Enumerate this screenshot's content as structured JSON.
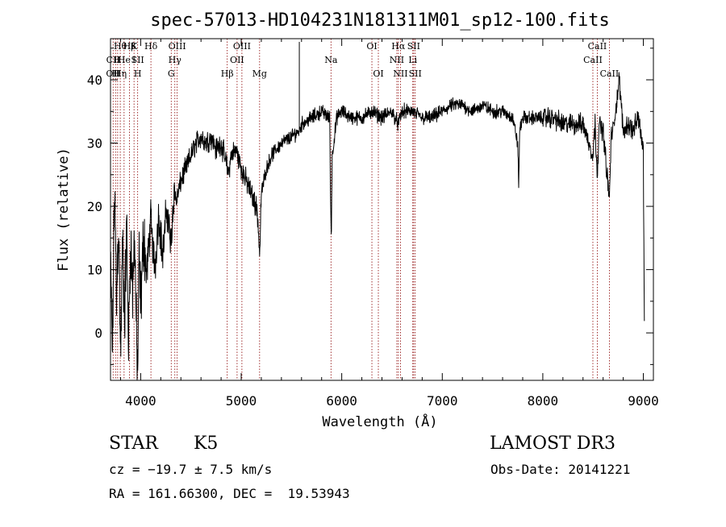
{
  "chart_data": {
    "type": "line",
    "title": "spec-57013-HD104231N181311M01_sp12-100.fits",
    "xlabel": "Wavelength (Å)",
    "ylabel": "Flux (relative)",
    "xlim": [
      3700,
      9100
    ],
    "ylim": [
      -7.5,
      46.5
    ],
    "x_ticks": [
      4000,
      5000,
      6000,
      7000,
      8000,
      9000
    ],
    "y_ticks": [
      0,
      10,
      20,
      30,
      40
    ],
    "grid": false,
    "line_color": "#000000",
    "marker_color": "#8b0000",
    "series": [
      {
        "anchors": [
          [
            3700,
            10
          ],
          [
            3720,
            -3
          ],
          [
            3740,
            24
          ],
          [
            3760,
            5
          ],
          [
            3780,
            18
          ],
          [
            3800,
            -4
          ],
          [
            3820,
            14
          ],
          [
            3840,
            2
          ],
          [
            3860,
            17
          ],
          [
            3880,
            -2
          ],
          [
            3900,
            15
          ],
          [
            3920,
            6
          ],
          [
            3940,
            16
          ],
          [
            3960,
            -2
          ],
          [
            3970,
            -6
          ],
          [
            3985,
            12
          ],
          [
            4000,
            4
          ],
          [
            4030,
            16
          ],
          [
            4060,
            9
          ],
          [
            4100,
            18
          ],
          [
            4140,
            10
          ],
          [
            4180,
            19
          ],
          [
            4220,
            12
          ],
          [
            4260,
            20
          ],
          [
            4300,
            14
          ],
          [
            4330,
            22
          ],
          [
            4360,
            21
          ],
          [
            4400,
            24
          ],
          [
            4450,
            26
          ],
          [
            4500,
            28
          ],
          [
            4550,
            30
          ],
          [
            4600,
            31
          ],
          [
            4650,
            30
          ],
          [
            4700,
            31
          ],
          [
            4750,
            29
          ],
          [
            4800,
            30
          ],
          [
            4850,
            27
          ],
          [
            4870,
            25
          ],
          [
            4900,
            28
          ],
          [
            4950,
            29
          ],
          [
            5000,
            26
          ],
          [
            5050,
            24
          ],
          [
            5100,
            22
          ],
          [
            5150,
            20
          ],
          [
            5170,
            17
          ],
          [
            5183,
            12
          ],
          [
            5200,
            22
          ],
          [
            5250,
            26
          ],
          [
            5300,
            28
          ],
          [
            5400,
            30
          ],
          [
            5500,
            31
          ],
          [
            5580,
            32
          ],
          [
            5600,
            33
          ],
          [
            5700,
            34
          ],
          [
            5800,
            35
          ],
          [
            5880,
            34
          ],
          [
            5890,
            20
          ],
          [
            5896,
            15
          ],
          [
            5905,
            28
          ],
          [
            5950,
            34
          ],
          [
            6000,
            35
          ],
          [
            6100,
            34
          ],
          [
            6200,
            34
          ],
          [
            6300,
            35
          ],
          [
            6400,
            34
          ],
          [
            6500,
            35
          ],
          [
            6563,
            33
          ],
          [
            6600,
            35
          ],
          [
            6700,
            35
          ],
          [
            6800,
            34
          ],
          [
            6900,
            34
          ],
          [
            7000,
            35
          ],
          [
            7100,
            36
          ],
          [
            7200,
            36
          ],
          [
            7300,
            35
          ],
          [
            7400,
            36
          ],
          [
            7500,
            35
          ],
          [
            7600,
            35
          ],
          [
            7700,
            34
          ],
          [
            7750,
            30
          ],
          [
            7760,
            23
          ],
          [
            7770,
            32
          ],
          [
            7800,
            34
          ],
          [
            7900,
            34
          ],
          [
            8000,
            34
          ],
          [
            8100,
            34
          ],
          [
            8200,
            33
          ],
          [
            8300,
            33
          ],
          [
            8400,
            33
          ],
          [
            8498,
            28
          ],
          [
            8520,
            33
          ],
          [
            8542,
            25
          ],
          [
            8560,
            33
          ],
          [
            8600,
            32
          ],
          [
            8662,
            21
          ],
          [
            8680,
            31
          ],
          [
            8700,
            32
          ],
          [
            8760,
            40
          ],
          [
            8800,
            32
          ],
          [
            8850,
            33
          ],
          [
            8900,
            32
          ],
          [
            8950,
            34
          ],
          [
            9000,
            29
          ],
          [
            9010,
            0
          ]
        ]
      }
    ],
    "sticks": [
      {
        "x": 5578,
        "top": 46,
        "bottom": 32
      }
    ],
    "lines": [
      {
        "x": 3726,
        "labels": [
          {
            "row": 1,
            "text": "CII"
          },
          {
            "row": 2,
            "text": "OII"
          }
        ]
      },
      {
        "x": 3750,
        "labels": [
          {
            "row": 2,
            "text": "H"
          }
        ]
      },
      {
        "x": 3771,
        "labels": [
          {
            "row": 1,
            "text": "H"
          },
          {
            "row": 2,
            "text": "H"
          }
        ]
      },
      {
        "x": 3797,
        "labels": [
          {
            "row": 0,
            "text": "Hθ"
          }
        ]
      },
      {
        "x": 3835,
        "labels": [
          {
            "row": 1,
            "text": "He"
          },
          {
            "row": 2,
            "text": "η"
          }
        ]
      },
      {
        "x": 3889,
        "labels": [
          {
            "row": 0,
            "text": "Hβ"
          }
        ]
      },
      {
        "x": 3934,
        "labels": [
          {
            "row": 0,
            "text": "K"
          },
          {
            "row": 1,
            "text": "I"
          }
        ]
      },
      {
        "x": 3970,
        "labels": [
          {
            "row": 1,
            "text": "SII"
          },
          {
            "row": 2,
            "text": "H"
          }
        ]
      },
      {
        "x": 4102,
        "labels": [
          {
            "row": 0,
            "text": "Hδ"
          }
        ]
      },
      {
        "x": 4304,
        "labels": [
          {
            "row": 2,
            "text": "G"
          }
        ]
      },
      {
        "x": 4340,
        "labels": [
          {
            "row": 1,
            "text": "Hγ"
          }
        ]
      },
      {
        "x": 4363,
        "labels": [
          {
            "row": 0,
            "text": "OIII"
          }
        ]
      },
      {
        "x": 4861,
        "labels": [
          {
            "row": 2,
            "text": "Hβ"
          }
        ]
      },
      {
        "x": 4959,
        "labels": [
          {
            "row": 1,
            "text": "OII"
          }
        ]
      },
      {
        "x": 5007,
        "labels": [
          {
            "row": 0,
            "text": "OIII"
          }
        ]
      },
      {
        "x": 5183,
        "labels": [
          {
            "row": 2,
            "text": "Mg"
          }
        ]
      },
      {
        "x": 5893,
        "labels": [
          {
            "row": 1,
            "text": "Na"
          }
        ]
      },
      {
        "x": 6300,
        "labels": [
          {
            "row": 0,
            "text": "OI"
          }
        ]
      },
      {
        "x": 6364,
        "labels": [
          {
            "row": 2,
            "text": "OI"
          }
        ]
      },
      {
        "x": 6548,
        "labels": [
          {
            "row": 1,
            "text": "NII"
          }
        ]
      },
      {
        "x": 6563,
        "labels": [
          {
            "row": 0,
            "text": "Hα"
          }
        ]
      },
      {
        "x": 6584,
        "labels": [
          {
            "row": 2,
            "text": "NII"
          }
        ]
      },
      {
        "x": 6707,
        "labels": [
          {
            "row": 1,
            "text": "Li"
          }
        ]
      },
      {
        "x": 6716,
        "labels": [
          {
            "row": 0,
            "text": "SII"
          }
        ]
      },
      {
        "x": 6731,
        "labels": [
          {
            "row": 2,
            "text": "SII"
          }
        ]
      },
      {
        "x": 8498,
        "labels": [
          {
            "row": 1,
            "text": "CaII"
          }
        ]
      },
      {
        "x": 8542,
        "labels": [
          {
            "row": 0,
            "text": "CaII"
          }
        ]
      },
      {
        "x": 8662,
        "labels": [
          {
            "row": 2,
            "text": "CaII"
          }
        ]
      }
    ]
  },
  "info": {
    "class_label": "STAR",
    "subclass": "K5",
    "survey": "LAMOST DR3",
    "cz_line": "cz = −19.7 ± 7.5 km/s",
    "obs_date": "Obs-Date: 20141221",
    "coords": "RA = 161.66300, DEC =  19.53943"
  }
}
